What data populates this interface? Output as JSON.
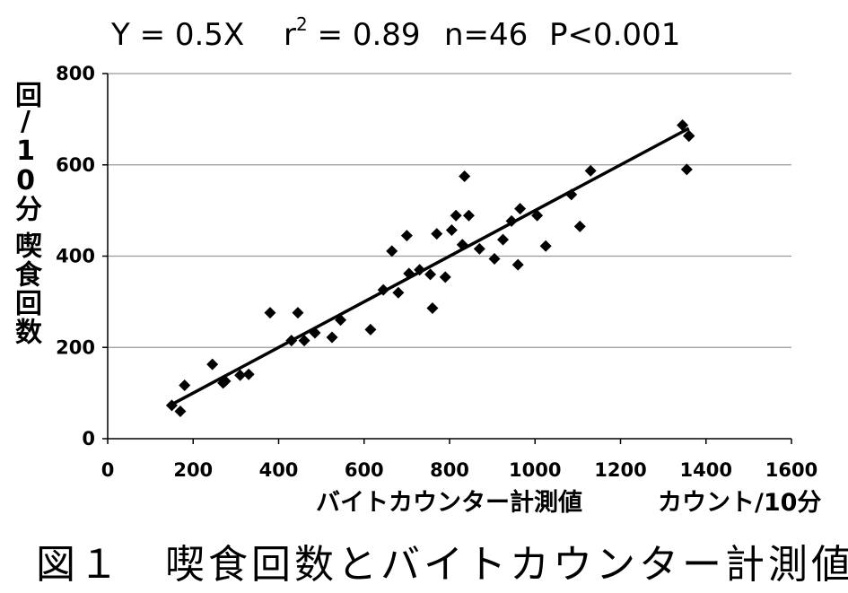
{
  "stats": {
    "equation": "Y = 0.5X",
    "r2_base": "r",
    "r2_sup": "2",
    "r2_rest": " = 0.89",
    "n": "n=46",
    "p": "P<0.001"
  },
  "caption": "図１　喫食回数とバイトカウンター計測値",
  "chart_data": {
    "type": "scatter",
    "title": "",
    "ylabel": "喫食回数",
    "ylabel_unit": "回/10分",
    "xlabel": "バイトカウンター計測値",
    "xlabel_unit": "カウント/10分",
    "xlim": [
      0,
      1600
    ],
    "ylim": [
      0,
      800
    ],
    "xticks": [
      0,
      200,
      400,
      600,
      800,
      1000,
      1200,
      1400,
      1600
    ],
    "yticks": [
      0,
      200,
      400,
      600,
      800
    ],
    "x_tick_labels": [
      "0",
      "200",
      "400",
      "600",
      "800",
      "1000",
      "1200",
      "1400",
      "1600"
    ],
    "y_tick_labels": [
      "0",
      "200",
      "400",
      "600",
      "800"
    ],
    "grid": "horizontal",
    "marker": "diamond",
    "colors": {
      "marker": "#000000",
      "trendline": "#000000",
      "grid": "#999999",
      "axis": "#000000"
    },
    "trendline": {
      "slope": 0.5,
      "intercept": 0,
      "x_range": [
        150,
        1360
      ]
    },
    "points": [
      [
        150,
        73
      ],
      [
        170,
        60
      ],
      [
        180,
        117
      ],
      [
        245,
        163
      ],
      [
        270,
        122
      ],
      [
        275,
        126
      ],
      [
        310,
        139
      ],
      [
        330,
        141
      ],
      [
        380,
        276
      ],
      [
        430,
        215
      ],
      [
        445,
        276
      ],
      [
        460,
        215
      ],
      [
        485,
        232
      ],
      [
        525,
        222
      ],
      [
        545,
        260
      ],
      [
        615,
        239
      ],
      [
        645,
        326
      ],
      [
        665,
        411
      ],
      [
        680,
        320
      ],
      [
        700,
        445
      ],
      [
        705,
        362
      ],
      [
        730,
        370
      ],
      [
        755,
        360
      ],
      [
        760,
        286
      ],
      [
        770,
        449
      ],
      [
        790,
        354
      ],
      [
        805,
        457
      ],
      [
        815,
        489
      ],
      [
        830,
        425
      ],
      [
        835,
        575
      ],
      [
        845,
        489
      ],
      [
        870,
        416
      ],
      [
        905,
        394
      ],
      [
        925,
        436
      ],
      [
        945,
        477
      ],
      [
        960,
        381
      ],
      [
        965,
        504
      ],
      [
        1005,
        489
      ],
      [
        1025,
        422
      ],
      [
        1085,
        535
      ],
      [
        1105,
        465
      ],
      [
        1130,
        587
      ],
      [
        1345,
        687
      ],
      [
        1355,
        590
      ],
      [
        1360,
        663
      ],
      [
        1360,
        664
      ]
    ]
  }
}
